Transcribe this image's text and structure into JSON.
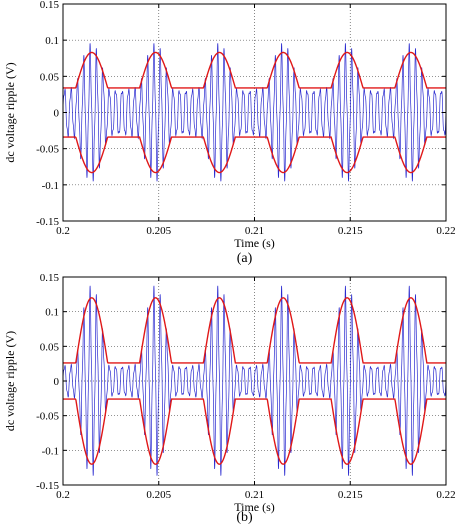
{
  "chart_data": [
    {
      "type": "line",
      "caption": "(a)",
      "xlabel": "Time (s)",
      "ylabel": "dc voltage ripple (V)",
      "xlim": [
        0.2,
        0.22
      ],
      "ylim": [
        -0.15,
        0.15
      ],
      "x_ticks": [
        0.2,
        0.205,
        0.21,
        0.215,
        0.22
      ],
      "x_tick_labels": [
        "0.2",
        "0.205",
        "0.21",
        "0.215",
        "0.22"
      ],
      "y_ticks": [
        0.15,
        0.1,
        0.05,
        0,
        -0.05,
        -0.1,
        -0.15
      ],
      "y_tick_labels": [
        "0.15",
        "0.1",
        "0.05",
        "0",
        "-0.05",
        "-0.1",
        "-0.15"
      ],
      "grid": true,
      "ripple": {
        "color": "#2a2ad0",
        "envelope_period": 0.0033333,
        "envelope_first_peak": 0.2015,
        "envelope_peak": 0.082,
        "envelope_valley": 0.032,
        "carrier_cycles_per_hump": 10
      },
      "envelope": {
        "color": "#e01818",
        "peak": 0.083,
        "valley": 0.034,
        "period": 0.0033333,
        "first_peak": 0.2015
      }
    },
    {
      "type": "line",
      "caption": "(b)",
      "xlabel": "Time (s)",
      "ylabel": "dc voltage ripple (V)",
      "xlim": [
        0.2,
        0.22
      ],
      "ylim": [
        -0.15,
        0.15
      ],
      "x_ticks": [
        0.2,
        0.205,
        0.21,
        0.215,
        0.22
      ],
      "x_tick_labels": [
        "0.2",
        "0.205",
        "0.21",
        "0.215",
        "0.22"
      ],
      "y_ticks": [
        0.15,
        0.1,
        0.05,
        0,
        -0.05,
        -0.1,
        -0.15
      ],
      "y_tick_labels": [
        "0.15",
        "0.1",
        "0.05",
        "0",
        "-0.05",
        "-0.1",
        "-0.15"
      ],
      "grid": true,
      "ripple": {
        "color": "#2a2ad0",
        "envelope_period": 0.0033333,
        "envelope_first_peak": 0.2015,
        "envelope_peak": 0.118,
        "envelope_valley": 0.022,
        "carrier_cycles_per_hump": 10
      },
      "envelope": {
        "color": "#e01818",
        "peak": 0.12,
        "valley": 0.026,
        "period": 0.0033333,
        "first_peak": 0.2015
      }
    }
  ]
}
